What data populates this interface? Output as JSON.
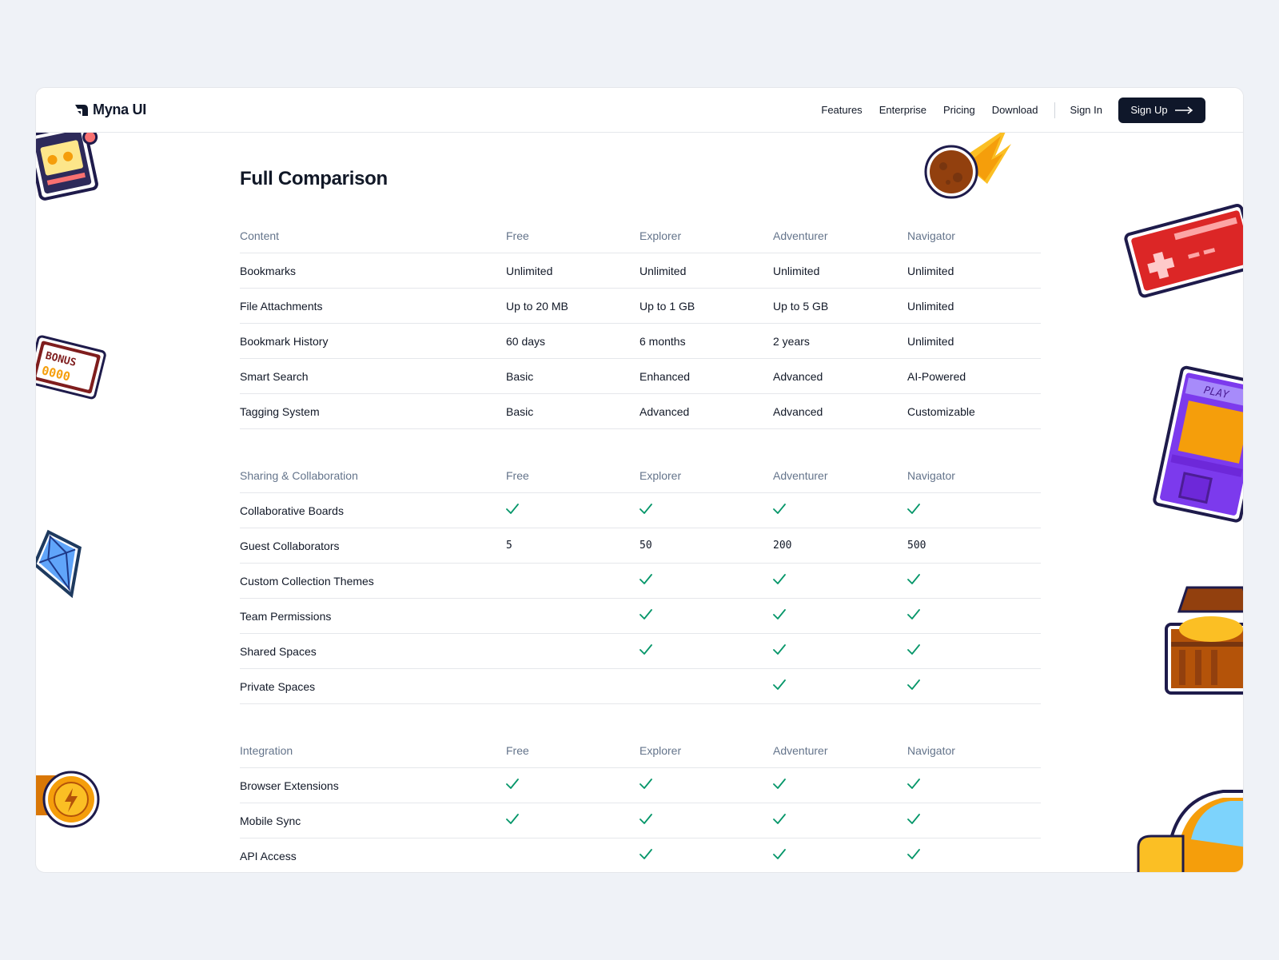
{
  "brand": {
    "name": "Myna UI"
  },
  "nav": {
    "links": [
      "Features",
      "Enterprise",
      "Pricing",
      "Download"
    ],
    "sign_in": "Sign In",
    "sign_up": "Sign Up"
  },
  "page_title": "Full Comparison",
  "colors": {
    "accent": "#0f172a",
    "check": "#059669",
    "background": "#eff2f7"
  },
  "sections": [
    {
      "header": [
        "Content",
        "Free",
        "Explorer",
        "Adventurer",
        "Navigator"
      ],
      "rows": [
        [
          "Bookmarks",
          "Unlimited",
          "Unlimited",
          "Unlimited",
          "Unlimited"
        ],
        [
          "File Attachments",
          "Up to 20 MB",
          "Up to 1 GB",
          "Up to 5 GB",
          "Unlimited"
        ],
        [
          "Bookmark History",
          "60 days",
          "6 months",
          "2 years",
          "Unlimited"
        ],
        [
          "Smart Search",
          "Basic",
          "Enhanced",
          "Advanced",
          "AI-Powered"
        ],
        [
          "Tagging System",
          "Basic",
          "Advanced",
          "Advanced",
          "Customizable"
        ]
      ]
    },
    {
      "header": [
        "Sharing & Collaboration",
        "Free",
        "Explorer",
        "Adventurer",
        "Navigator"
      ],
      "rows": [
        [
          "Collaborative Boards",
          "check",
          "check",
          "check",
          "check"
        ],
        [
          "Guest Collaborators",
          "5",
          "50",
          "200",
          "500"
        ],
        [
          "Custom Collection Themes",
          "",
          "check",
          "check",
          "check"
        ],
        [
          "Team Permissions",
          "",
          "check",
          "check",
          "check"
        ],
        [
          "Shared Spaces",
          "",
          "check",
          "check",
          "check"
        ],
        [
          "Private Spaces",
          "",
          "",
          "check",
          "check"
        ]
      ]
    },
    {
      "header": [
        "Integration",
        "Free",
        "Explorer",
        "Adventurer",
        "Navigator"
      ],
      "rows": [
        [
          "Browser Extensions",
          "check",
          "check",
          "check",
          "check"
        ],
        [
          "Mobile Sync",
          "check",
          "check",
          "check",
          "check"
        ],
        [
          "API Access",
          "",
          "check",
          "check",
          "check"
        ]
      ]
    }
  ],
  "stickers": {
    "slot_machine": "slot-machine-sticker",
    "bonus": {
      "text": "BONUS",
      "digits": "0000"
    },
    "diamond": "diamond-sticker",
    "coin": "coin-sticker",
    "meteor": "meteor-sticker",
    "gamepad": "gamepad-sticker",
    "arcade": {
      "text": "PLAY"
    },
    "treasure": "treasure-chest-sticker",
    "mushroom": "mushroom-sticker"
  }
}
